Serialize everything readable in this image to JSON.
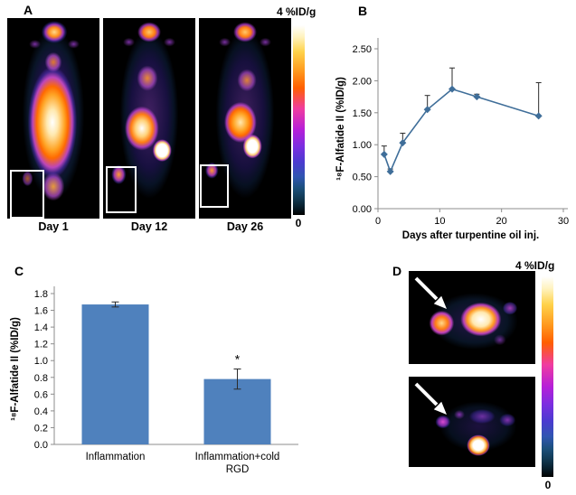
{
  "panel_a": {
    "label": "A",
    "colorbar_top": "4 %ID/g",
    "colorbar_bottom": "0",
    "scans": [
      {
        "caption": "Day 1"
      },
      {
        "caption": "Day 12"
      },
      {
        "caption": "Day 26"
      }
    ]
  },
  "panel_b": {
    "label": "B"
  },
  "panel_c": {
    "label": "C"
  },
  "panel_d": {
    "label": "D",
    "colorbar_top": "4 %ID/g",
    "colorbar_bottom": "0"
  },
  "chart_data": [
    {
      "type": "line",
      "panel": "B",
      "x": [
        1,
        2,
        4,
        8,
        12,
        16,
        26
      ],
      "series": [
        {
          "name": "18F-Alfatide II uptake",
          "values": [
            0.85,
            0.58,
            1.03,
            1.55,
            1.87,
            1.75,
            1.45
          ],
          "errors": [
            0.13,
            0.04,
            0.15,
            0.22,
            0.33,
            0.04,
            0.52
          ]
        }
      ],
      "xlabel": "Days after turpentine oil inj.",
      "ylabel": "¹⁸F-Alfatide II (%ID/g)",
      "xlim": [
        0,
        30
      ],
      "ylim": [
        0,
        2.5
      ],
      "xticks": [
        "0",
        "10",
        "20",
        "30"
      ],
      "yticks": [
        "0.00",
        "0.50",
        "1.00",
        "1.50",
        "2.00",
        "2.50"
      ],
      "marker": "diamond",
      "grid": false,
      "legend": "none",
      "color": "#3f6e99"
    },
    {
      "type": "bar",
      "panel": "C",
      "categories": [
        "Inflammation",
        "Inflammation+cold RGD"
      ],
      "categories_lines": [
        [
          "Inflammation"
        ],
        [
          "Inflammation+cold",
          "RGD"
        ]
      ],
      "values": [
        1.67,
        0.78
      ],
      "errors": [
        0.03,
        0.12
      ],
      "ylabel": "¹⁸F-Alfatide II (%ID/g)",
      "ylim": [
        0,
        1.8
      ],
      "yticks": [
        "0.0",
        "0.2",
        "0.4",
        "0.6",
        "0.8",
        "1.0",
        "1.2",
        "1.4",
        "1.6",
        "1.8"
      ],
      "grid": false,
      "legend": "none",
      "color": "#4f81bd",
      "annotations": [
        {
          "text": "*",
          "category_index": 1
        }
      ]
    }
  ]
}
